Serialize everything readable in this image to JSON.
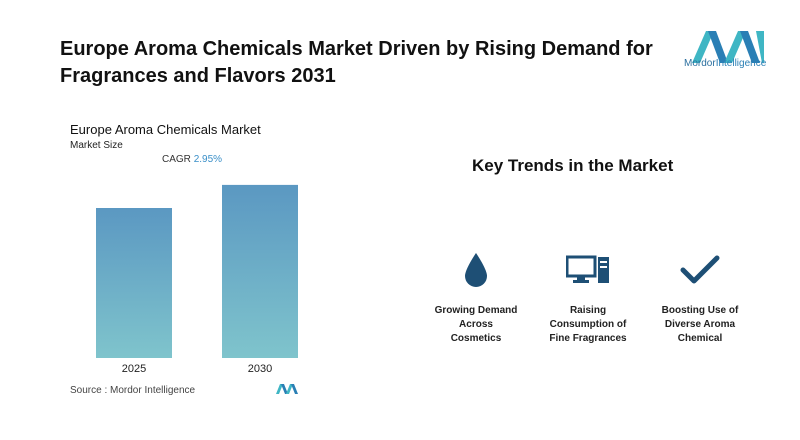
{
  "header": {
    "title": "Europe Aroma Chemicals Market Driven by Rising Demand for Fragrances and Flavors 2031",
    "logo_text_brand": "Mordor",
    "logo_text_rest": "Intelligence"
  },
  "chart_data": {
    "type": "bar",
    "title": "Europe Aroma Chemicals Market",
    "subtitle": "Market Size",
    "cagr_label": "CAGR",
    "cagr_value": "2.95%",
    "categories": [
      "2025",
      "2030"
    ],
    "values": [
      1.0,
      1.154
    ],
    "ylim": [
      0,
      1.2
    ],
    "grid": false,
    "colors": {
      "top": "#5b98c2",
      "bottom": "#7fc4cc"
    }
  },
  "source": "Source :  Mordor Intelligence",
  "key_trends": {
    "title": "Key Trends in the Market",
    "items": [
      {
        "icon": "droplet-icon",
        "label_lines": [
          "Growing Demand",
          "Across",
          "Cosmetics"
        ]
      },
      {
        "icon": "computer-icon",
        "label_lines": [
          "Raising",
          "Consumption of",
          "Fine Fragrances"
        ]
      },
      {
        "icon": "checkmark-icon",
        "label_lines": [
          "Boosting Use of",
          "Diverse Aroma",
          "Chemical"
        ]
      }
    ]
  },
  "colors": {
    "accent": "#1e4f75",
    "logo_teal": "#3fb6c4",
    "logo_blue": "#2a7fb5"
  }
}
